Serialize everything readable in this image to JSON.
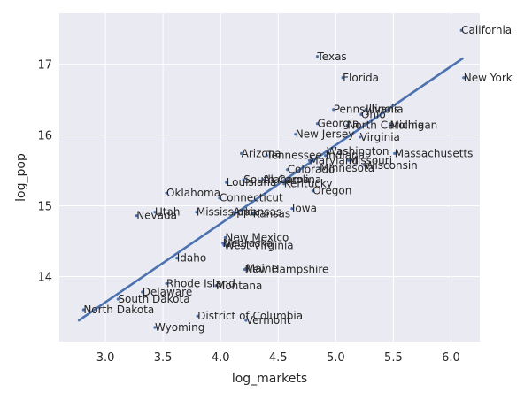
{
  "chart_data": {
    "type": "scatter",
    "title": "",
    "xlabel": "log_markets",
    "ylabel": "log_pop",
    "xlim": [
      2.6,
      6.25
    ],
    "ylim": [
      13.08,
      17.72
    ],
    "xticks": [
      3.0,
      3.5,
      4.0,
      4.5,
      5.0,
      5.5,
      6.0
    ],
    "yticks": [
      14,
      15,
      16,
      17
    ],
    "grid": true,
    "background": "#eaeaf2",
    "point_color": "#4c72b0",
    "line_color": "#4c72b0",
    "regression_line": {
      "x": [
        2.77,
        6.1
      ],
      "y": [
        13.38,
        17.08
      ]
    },
    "points": [
      {
        "label": "California",
        "x": 6.09,
        "y": 17.48
      },
      {
        "label": "Texas",
        "x": 4.84,
        "y": 17.11
      },
      {
        "label": "Florida",
        "x": 5.06,
        "y": 16.81
      },
      {
        "label": "New York",
        "x": 6.11,
        "y": 16.81
      },
      {
        "label": "Pennsylvania",
        "x": 4.98,
        "y": 16.36
      },
      {
        "label": "Illinois",
        "x": 5.26,
        "y": 16.36
      },
      {
        "label": "Ohio",
        "x": 5.22,
        "y": 16.29
      },
      {
        "label": "Georgia",
        "x": 4.84,
        "y": 16.16
      },
      {
        "label": "North Carolina",
        "x": 5.1,
        "y": 16.14
      },
      {
        "label": "Michigan",
        "x": 5.47,
        "y": 16.14
      },
      {
        "label": "New Jersey",
        "x": 4.65,
        "y": 16.01
      },
      {
        "label": "Virginia",
        "x": 5.21,
        "y": 15.97
      },
      {
        "label": "Washington",
        "x": 4.92,
        "y": 15.77
      },
      {
        "label": "Arizona",
        "x": 4.18,
        "y": 15.74
      },
      {
        "label": "Tennessee",
        "x": 4.4,
        "y": 15.71
      },
      {
        "label": "Indiana",
        "x": 4.91,
        "y": 15.71
      },
      {
        "label": "Massachusetts",
        "x": 5.51,
        "y": 15.74
      },
      {
        "label": "Maryland",
        "x": 4.77,
        "y": 15.64
      },
      {
        "label": "Missouri",
        "x": 5.11,
        "y": 15.64
      },
      {
        "label": "Wisconsin",
        "x": 5.25,
        "y": 15.57
      },
      {
        "label": "Colorado",
        "x": 4.58,
        "y": 15.51
      },
      {
        "label": "Minnesota",
        "x": 4.86,
        "y": 15.53
      },
      {
        "label": "South Carolina",
        "x": 4.2,
        "y": 15.37
      },
      {
        "label": "Alabama",
        "x": 4.37,
        "y": 15.37
      },
      {
        "label": "Louisiana",
        "x": 4.05,
        "y": 15.33
      },
      {
        "label": "Kentucky",
        "x": 4.55,
        "y": 15.31
      },
      {
        "label": "Oregon",
        "x": 4.8,
        "y": 15.21
      },
      {
        "label": "Oklahoma",
        "x": 3.53,
        "y": 15.18
      },
      {
        "label": "Connecticut",
        "x": 3.99,
        "y": 15.11
      },
      {
        "label": "Iowa",
        "x": 4.62,
        "y": 14.96
      },
      {
        "label": "Utah",
        "x": 3.43,
        "y": 14.91
      },
      {
        "label": "Mississippi",
        "x": 3.79,
        "y": 14.91
      },
      {
        "label": "Arkansas",
        "x": 4.11,
        "y": 14.91
      },
      {
        "label": "Kansas",
        "x": 4.28,
        "y": 14.89
      },
      {
        "label": "Nevada",
        "x": 3.27,
        "y": 14.86
      },
      {
        "label": "New Mexico",
        "x": 4.04,
        "y": 14.55
      },
      {
        "label": "Nebraska",
        "x": 4.02,
        "y": 14.47
      },
      {
        "label": "West Virginia",
        "x": 4.03,
        "y": 14.44
      },
      {
        "label": "Idaho",
        "x": 3.62,
        "y": 14.26
      },
      {
        "label": "Maine",
        "x": 4.22,
        "y": 14.11
      },
      {
        "label": "New Hampshire",
        "x": 4.21,
        "y": 14.1
      },
      {
        "label": "Rhode Island",
        "x": 3.53,
        "y": 13.9
      },
      {
        "label": "Montana",
        "x": 3.96,
        "y": 13.87
      },
      {
        "label": "Delaware",
        "x": 3.32,
        "y": 13.78
      },
      {
        "label": "South Dakota",
        "x": 3.11,
        "y": 13.68
      },
      {
        "label": "North Dakota",
        "x": 2.81,
        "y": 13.53
      },
      {
        "label": "District of Columbia",
        "x": 3.8,
        "y": 13.44
      },
      {
        "label": "Vermont",
        "x": 4.22,
        "y": 13.38
      },
      {
        "label": "Wyoming",
        "x": 3.43,
        "y": 13.28
      }
    ]
  }
}
